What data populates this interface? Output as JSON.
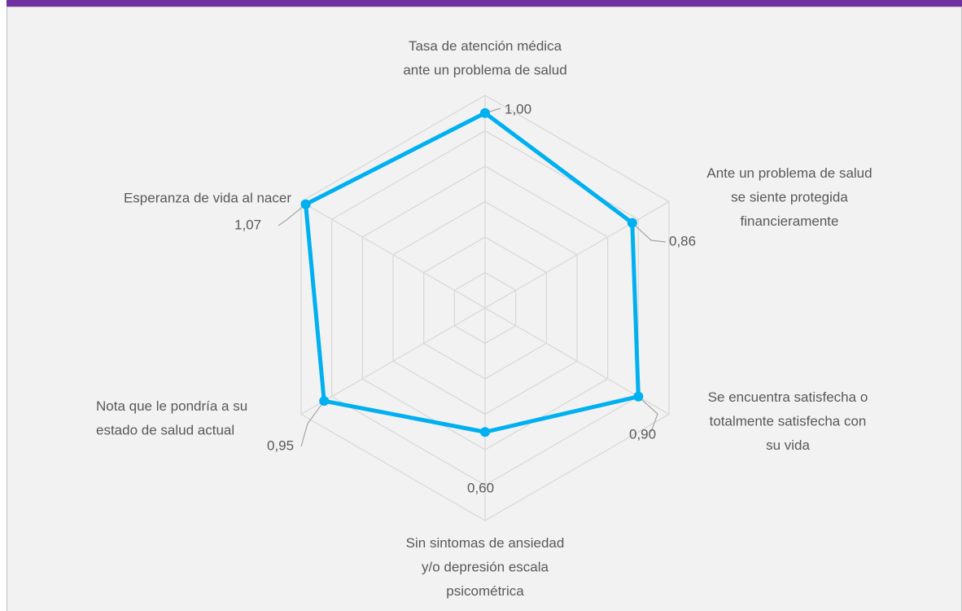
{
  "chart_data": {
    "type": "radar",
    "categories": [
      "Tasa de atención médica\nante un problema de salud",
      "Ante un problema de salud\nse siente protegida\nfinancieramente",
      "Se encuentra satisfecha o\ntotalmente satisfecha con\nsu vida",
      "Sin sintomas de ansiedad\ny/o depresión escala\npsicométrica",
      "Nota que le pondría a su\nestado de salud actual",
      "Esperanza de vida al nacer"
    ],
    "values": [
      1.0,
      0.86,
      0.9,
      0.6,
      0.95,
      1.07
    ],
    "value_labels": [
      "1,00",
      "0,86",
      "0,90",
      "0,60",
      "0,95",
      "1,07"
    ],
    "color": "#00b0f0",
    "ylim": [
      -0.1,
      1.1
    ],
    "yticks": [
      0.1,
      0.3,
      0.5,
      0.7,
      0.9,
      1.1
    ],
    "grid": true
  }
}
